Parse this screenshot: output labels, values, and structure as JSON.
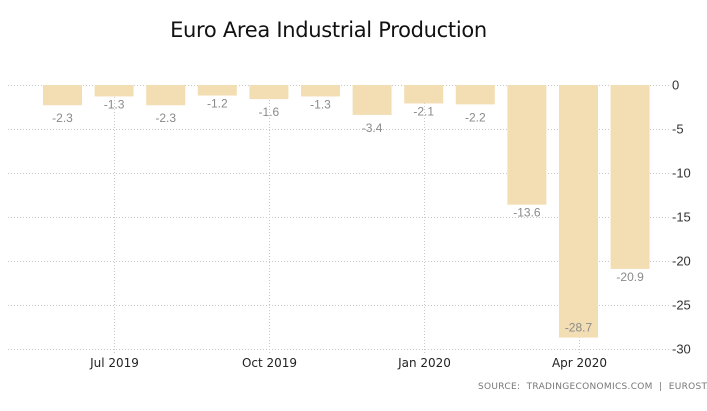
{
  "chart_data": {
    "type": "bar",
    "title": "Euro Area Industrial Production",
    "xlabel": "",
    "ylabel": "",
    "categories": [
      "Jun 2019",
      "Jul 2019",
      "Aug 2019",
      "Sep 2019",
      "Oct 2019",
      "Nov 2019",
      "Dec 2019",
      "Jan 2020",
      "Feb 2020",
      "Mar 2020",
      "Apr 2020",
      "May 2020"
    ],
    "values": [
      -2.3,
      -1.3,
      -2.3,
      -1.2,
      -1.6,
      -1.3,
      -3.4,
      -2.1,
      -2.2,
      -13.6,
      -28.7,
      -20.9
    ],
    "data_labels": [
      "-2.3",
      "-1.3",
      "-2.3",
      "-1.2",
      "-1.6",
      "-1.3",
      "-3.4",
      "-2.1",
      "-2.2",
      "-13.6",
      "-28.7",
      "-20.9"
    ],
    "ylim": [
      -30,
      0
    ],
    "y_ticks": [
      0,
      -5,
      -10,
      -15,
      -20,
      -25,
      -30
    ],
    "y_tick_labels": [
      "0",
      "-5",
      "-10",
      "-15",
      "-20",
      "-25",
      "-30"
    ],
    "x_tick_labels": [
      {
        "label": "Jul 2019",
        "category_index": 1
      },
      {
        "label": "Oct 2019",
        "category_index": 4
      },
      {
        "label": "Jan 2020",
        "category_index": 7
      },
      {
        "label": "Apr 2020",
        "category_index": 10
      }
    ],
    "y_axis_side": "right",
    "grid": true,
    "legend": "none",
    "bar_color": "#f3deb4",
    "label_color": "#8a8a8a"
  },
  "source": "SOURCE:  TRADINGECONOMICS.COM  |  EUROSTAT"
}
